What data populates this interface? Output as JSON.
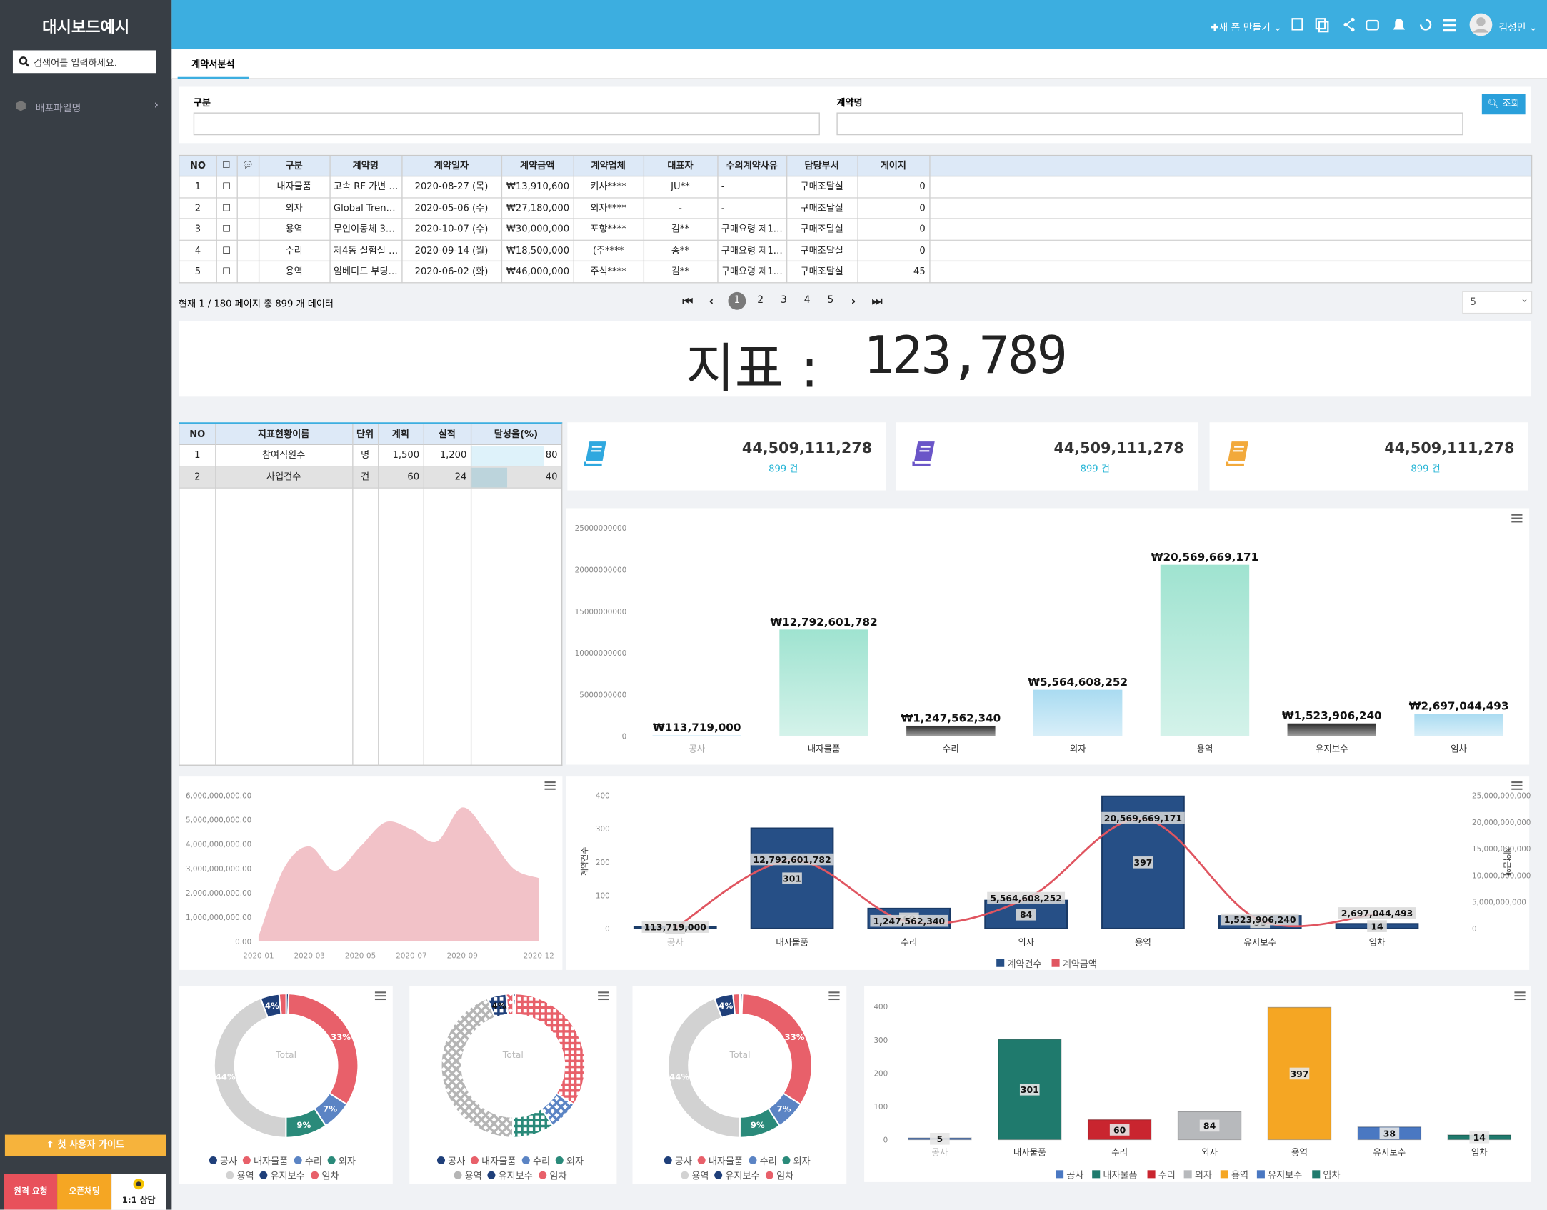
{
  "sidebar": {
    "title": "대시보드예시",
    "search_placeholder": "검색어를 입력하세요.",
    "menu": [
      "배포파일명"
    ],
    "guide_button": "첫 사용자 가이드",
    "buttons": [
      "원격 요청",
      "오픈채팅",
      "1:1 상담"
    ]
  },
  "header": {
    "new_form": "새 폼 만들기",
    "user": "김성민"
  },
  "tab": "계약서분석",
  "filters": {
    "labels": [
      "구분",
      "계약명"
    ],
    "search_button": "조회"
  },
  "table": {
    "headers": [
      "NO",
      "구분",
      "계약명",
      "계약일자",
      "계약금액",
      "계약업체",
      "대표자",
      "수의계약사유",
      "담당부서",
      "게이지"
    ],
    "rows": [
      [
        "1",
        "내자물품",
        "고속 RF 가변 …",
        "2020-08-27 (목)",
        "₩13,910,600",
        "키사****",
        "JU**",
        "-",
        "구매조달실",
        "0"
      ],
      [
        "2",
        "외자",
        "Global Tren…",
        "2020-05-06 (수)",
        "₩27,180,000",
        "외자****",
        "-",
        "-",
        "구매조달실",
        "0"
      ],
      [
        "3",
        "용역",
        "무인이동체 3…",
        "2020-10-07 (수)",
        "₩30,000,000",
        "포항****",
        "김**",
        "구매요령 제1…",
        "구매조달실",
        "0"
      ],
      [
        "4",
        "수리",
        "제4동 실험실 …",
        "2020-09-14 (월)",
        "₩18,500,000",
        "(주****",
        "송**",
        "구매요령 제1…",
        "구매조달실",
        "0"
      ],
      [
        "5",
        "용역",
        "임베디드 부팅…",
        "2020-06-02 (화)",
        "₩46,000,000",
        "주식****",
        "김**",
        "구매요령 제1…",
        "구매조달실",
        "45"
      ]
    ]
  },
  "pagination": {
    "info": "현재 1 / 180 페이지 총 899 개 데이터",
    "pages": [
      "1",
      "2",
      "3",
      "4",
      "5"
    ],
    "page_size": "5"
  },
  "indicator": {
    "label": "지표 :",
    "value": "123,789"
  },
  "kpi_table": {
    "headers": [
      "NO",
      "지표현황이름",
      "단위",
      "계획",
      "실적",
      "달성율(%)"
    ],
    "rows": [
      [
        "1",
        "참여직원수",
        "명",
        "1,500",
        "1,200",
        80
      ],
      [
        "2",
        "사업건수",
        "건",
        "60",
        "24",
        40
      ]
    ]
  },
  "cards": [
    {
      "value": "44,509,111,278",
      "count": "899 건",
      "color": "#2fa8df"
    },
    {
      "value": "44,509,111,278",
      "count": "899 건",
      "color": "#6a55c8"
    },
    {
      "value": "44,509,111,278",
      "count": "899 건",
      "color": "#f2a93b"
    }
  ],
  "chart_data": [
    {
      "type": "bar",
      "categories": [
        "공사",
        "내자물품",
        "수리",
        "외자",
        "용역",
        "유지보수",
        "임차"
      ],
      "values": [
        113719000,
        12792601782,
        1247562340,
        5564608252,
        20569669171,
        1523906240,
        2697044493
      ],
      "value_labels": [
        "₩113,719,000",
        "₩12,792,601,782",
        "₩1,247,562,340",
        "₩5,564,608,252",
        "₩20,569,669,171",
        "₩1,523,906,240",
        "₩2,697,044,493"
      ],
      "colors": [
        "#cfe9f6",
        "#9fe3d0",
        "#2b2b2b",
        "#a9dbf1",
        "#9fe3d0",
        "#2b2b2b",
        "#a9dbf1"
      ],
      "ylim": [
        0,
        25000000000
      ],
      "yticks": [
        0,
        5000000000,
        10000000000,
        15000000000,
        20000000000,
        25000000000
      ]
    },
    {
      "type": "area",
      "x": [
        "2020-01",
        null,
        "2020-03",
        null,
        "2020-05",
        null,
        "2020-07",
        null,
        "2020-09",
        null,
        null,
        "2020-12"
      ],
      "values": [
        200000000,
        3000000000,
        3900000000,
        2900000000,
        3900000000,
        4900000000,
        4600000000,
        4100000000,
        5500000000,
        4400000000,
        3000000000,
        2600000000
      ],
      "color": "#f2c2c8",
      "ylim": [
        0,
        6000000000
      ],
      "yticks": [
        {
          "value": 0,
          "label": "0.00"
        },
        {
          "value": 1000000000,
          "label": "1,000,000,000.00"
        },
        {
          "value": 2000000000,
          "label": "2,000,000,000.00"
        },
        {
          "value": 3000000000,
          "label": "3,000,000,000.00"
        },
        {
          "value": 4000000000,
          "label": "4,000,000,000.00"
        },
        {
          "value": 5000000000,
          "label": "5,000,000,000.00"
        },
        {
          "value": 6000000000,
          "label": "6,000,000,000.00"
        }
      ]
    },
    {
      "type": "combo",
      "categories": [
        "공사",
        "내자물품",
        "수리",
        "외자",
        "용역",
        "유지보수",
        "임차"
      ],
      "series": [
        {
          "name": "계약건수",
          "color": "#264f86",
          "type": "bar",
          "values": [
            5,
            301,
            60,
            84,
            397,
            38,
            14
          ]
        },
        {
          "name": "계약금액",
          "color": "#e05560",
          "type": "line",
          "axis": "y2",
          "values": [
            113719000,
            12792601782,
            1247562340,
            5564608252,
            20569669171,
            1523906240,
            2697044493
          ],
          "value_labels": [
            "113,719,000",
            "12,792,601,782",
            "1,247,562,340",
            "5,564,608,252",
            "20,569,669,171",
            "1,523,906,240",
            "2,697,044,493"
          ]
        }
      ],
      "ylabel": "계약건수",
      "y2label": "계약금액",
      "ylim": [
        0,
        400
      ],
      "yticks": [
        0,
        100,
        200,
        300,
        400
      ],
      "y2lim": [
        0,
        25000000000
      ],
      "y2ticks": [
        0,
        {
          "value": 5000000000,
          "label": "5,000,000,000"
        },
        {
          "value": 10000000000,
          "label": "10,000,000,000"
        },
        {
          "value": 15000000000,
          "label": "15,000,000,000"
        },
        {
          "value": 20000000000,
          "label": "20,000,000,000"
        },
        {
          "value": 25000000000,
          "label": "25,000,000,000"
        }
      ]
    },
    {
      "type": "donut",
      "center_label": "Total",
      "categories": [
        "공사",
        "내자물품",
        "수리",
        "외자",
        "용역",
        "유지보수",
        "임차"
      ],
      "values": [
        0.56,
        33.48,
        6.67,
        9.34,
        44.16,
        4.23,
        1.56
      ],
      "value_labels": [
        null,
        "33%",
        "7%",
        "9%",
        "44%",
        "4%",
        null
      ],
      "colors": [
        "#1f3f7a",
        "#e8606a",
        "#5b84c4",
        "#2a8a7a",
        "#d2d2d2",
        "#1f3f7a",
        "#e8606a"
      ]
    },
    {
      "type": "donut",
      "center_label": "Total",
      "pattern": true,
      "categories": [
        "공사",
        "내자물품",
        "수리",
        "외자",
        "용역",
        "유지보수",
        "임차"
      ],
      "values": [
        0.56,
        33.48,
        6.67,
        9.34,
        44.16,
        4.23,
        1.56
      ],
      "value_labels": [
        null,
        null,
        null,
        null,
        null,
        "4%",
        null
      ],
      "colors": [
        "#1f3f7a",
        "#e8606a",
        "#5b84c4",
        "#2a8a7a",
        "#b5b5b5",
        "#1f3f7a",
        "#e8606a"
      ]
    },
    {
      "type": "donut",
      "center_label": "Total",
      "categories": [
        "공사",
        "내자물품",
        "수리",
        "외자",
        "용역",
        "유지보수",
        "임차"
      ],
      "values": [
        0.56,
        33.48,
        6.67,
        9.34,
        44.16,
        4.23,
        1.56
      ],
      "value_labels": [
        null,
        "33%",
        "7%",
        "9%",
        "44%",
        "4%",
        null
      ],
      "colors": [
        "#1f3f7a",
        "#e8606a",
        "#5b84c4",
        "#2a8a7a",
        "#d2d2d2",
        "#1f3f7a",
        "#e8606a"
      ]
    },
    {
      "type": "bar",
      "categories": [
        "공사",
        "내자물품",
        "수리",
        "외자",
        "용역",
        "유지보수",
        "임차"
      ],
      "values": [
        5,
        301,
        60,
        84,
        397,
        38,
        14
      ],
      "colors": [
        "#4a78c2",
        "#1f7a6d",
        "#c9252f",
        "#b7b9bc",
        "#f5a623",
        "#4a78c2",
        "#1f7a6d"
      ],
      "inside_labels": true,
      "legend": true,
      "ylim": [
        0,
        400
      ],
      "yticks": [
        0,
        100,
        200,
        300,
        400
      ]
    }
  ]
}
